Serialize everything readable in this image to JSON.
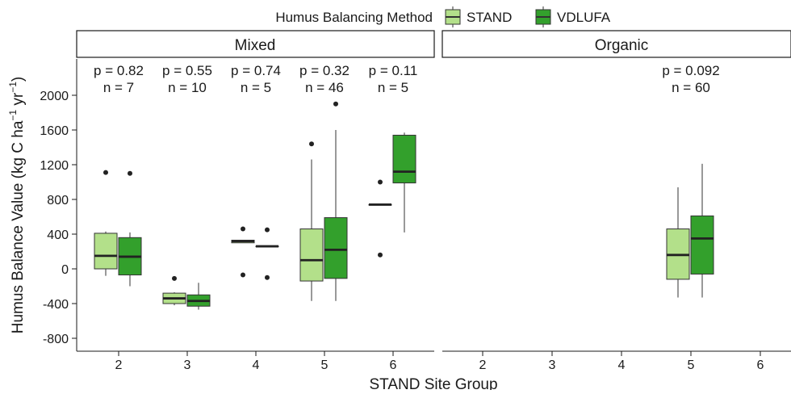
{
  "chart_data": {
    "type": "box",
    "legend": {
      "title": "Humus Balancing Method",
      "placement": "top",
      "entries": [
        {
          "name": "STAND",
          "color": "#b3e08a"
        },
        {
          "name": "VDLUFA",
          "color": "#33a02c"
        }
      ]
    },
    "ylabel_main": "Humus Balance Value (kg C ha",
    "ylabel_sup1": "−1",
    "ylabel_mid": " yr",
    "ylabel_sup2": "−1",
    "ylabel_end": ")",
    "xlabel": "STAND Site Group",
    "ylim": [
      -950,
      2200
    ],
    "yticks": [
      -800,
      -400,
      0,
      400,
      800,
      1200,
      1600,
      2000
    ],
    "ytick_labels": [
      "-800",
      "-400",
      "0",
      "400",
      "800",
      "1200",
      "1600",
      "2000"
    ],
    "categories": [
      "2",
      "3",
      "4",
      "5",
      "6"
    ],
    "grid": false,
    "panels": [
      {
        "title": "Mixed",
        "stats": [
          {
            "category": "2",
            "p": "p = 0.82",
            "n": "n = 7"
          },
          {
            "category": "3",
            "p": "p = 0.55",
            "n": "n = 10"
          },
          {
            "category": "4",
            "p": "p = 0.74",
            "n": "n = 5"
          },
          {
            "category": "5",
            "p": "p = 0.32",
            "n": "n = 46"
          },
          {
            "category": "6",
            "p": "p = 0.11",
            "n": "n = 5"
          }
        ],
        "boxes": [
          {
            "category": "2",
            "series": "STAND",
            "whisker_low": -80,
            "q1": 0,
            "median": 150,
            "q3": 410,
            "whisker_high": 430,
            "outliers": [
              1110
            ]
          },
          {
            "category": "2",
            "series": "VDLUFA",
            "whisker_low": -200,
            "q1": -70,
            "median": 140,
            "q3": 360,
            "whisker_high": 420,
            "outliers": [
              1100
            ]
          },
          {
            "category": "3",
            "series": "STAND",
            "whisker_low": -420,
            "q1": -400,
            "median": -340,
            "q3": -280,
            "whisker_high": -270,
            "outliers": [
              -110
            ]
          },
          {
            "category": "3",
            "series": "VDLUFA",
            "whisker_low": -470,
            "q1": -430,
            "median": -370,
            "q3": -300,
            "whisker_high": -160,
            "outliers": []
          },
          {
            "category": "4",
            "series": "STAND",
            "whisker_low": 300,
            "q1": 300,
            "median": 320,
            "q3": 330,
            "whisker_high": 330,
            "outliers": [
              460,
              -70
            ]
          },
          {
            "category": "4",
            "series": "VDLUFA",
            "whisker_low": 260,
            "q1": 260,
            "median": 260,
            "q3": 260,
            "whisker_high": 260,
            "outliers": [
              450,
              -100
            ]
          },
          {
            "category": "5",
            "series": "STAND",
            "whisker_low": -370,
            "q1": -140,
            "median": 100,
            "q3": 460,
            "whisker_high": 1260,
            "outliers": [
              1440
            ]
          },
          {
            "category": "5",
            "series": "VDLUFA",
            "whisker_low": -370,
            "q1": -110,
            "median": 220,
            "q3": 590,
            "whisker_high": 1600,
            "outliers": [
              1900
            ]
          },
          {
            "category": "6",
            "series": "STAND",
            "whisker_low": 740,
            "q1": 740,
            "median": 740,
            "q3": 740,
            "whisker_high": 740,
            "outliers": [
              1000,
              160
            ]
          },
          {
            "category": "6",
            "series": "VDLUFA",
            "whisker_low": 420,
            "q1": 990,
            "median": 1120,
            "q3": 1540,
            "whisker_high": 1570,
            "outliers": []
          }
        ]
      },
      {
        "title": "Organic",
        "stats": [
          {
            "category": "5",
            "p": "p = 0.092",
            "n": "n = 60"
          }
        ],
        "boxes": [
          {
            "category": "5",
            "series": "STAND",
            "whisker_low": -330,
            "q1": -120,
            "median": 160,
            "q3": 460,
            "whisker_high": 940,
            "outliers": []
          },
          {
            "category": "5",
            "series": "VDLUFA",
            "whisker_low": -330,
            "q1": -60,
            "median": 350,
            "q3": 610,
            "whisker_high": 1210,
            "outliers": []
          }
        ]
      }
    ]
  }
}
